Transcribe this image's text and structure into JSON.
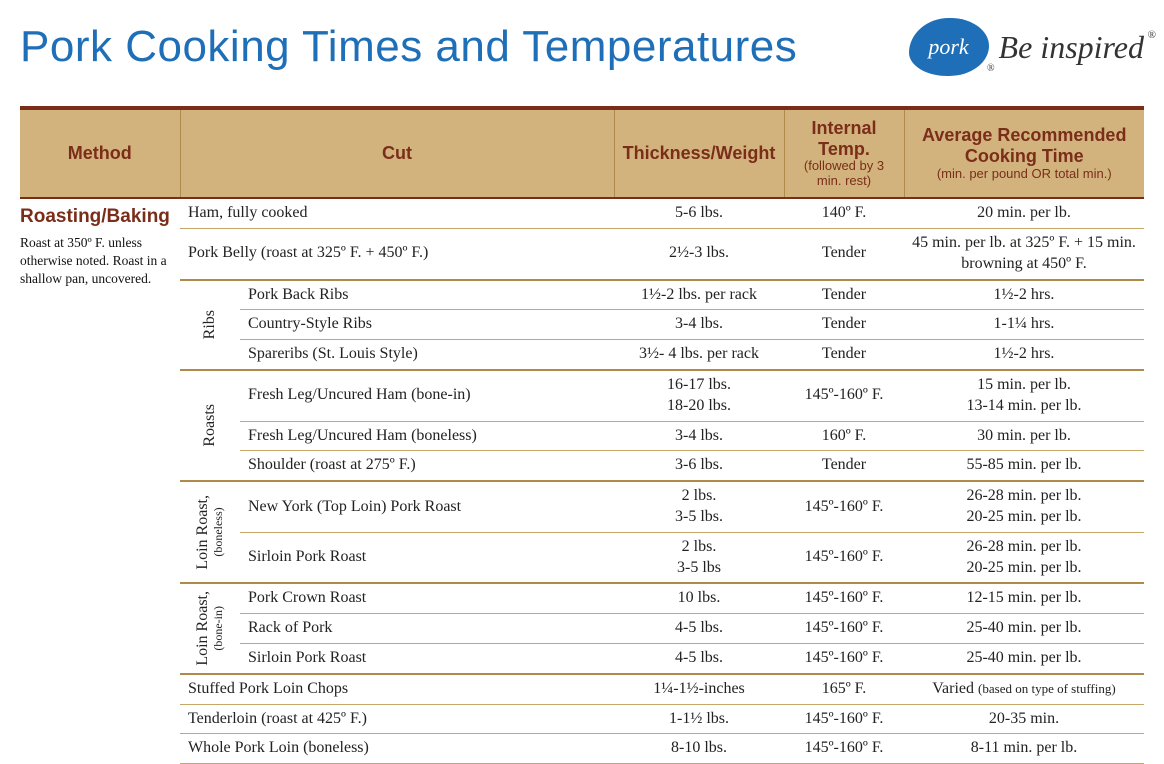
{
  "colors": {
    "title_blue": "#1e6fb7",
    "header_bg": "#d3b37d",
    "header_text": "#7a2e1a",
    "rule_dark": "#7a2e1a",
    "rule_light": "#c8a86a",
    "body_text": "#222222",
    "page_bg": "#ffffff"
  },
  "typography": {
    "title_font": "Arial Narrow",
    "title_size_pt": 33,
    "body_font": "Georgia",
    "body_size_pt": 12,
    "header_size_pt": 14
  },
  "title": "Pork Cooking Times and Temperatures",
  "logo": {
    "badge_text": "pork",
    "tagline": "Be inspired"
  },
  "columns": {
    "method": "Method",
    "cut": "Cut",
    "thickness": "Thickness/Weight",
    "temp": "Internal Temp.",
    "temp_sub": "(followed by 3 min. rest)",
    "time": "Average Recommended Cooking Time",
    "time_sub": "(min. per pound OR total min.)"
  },
  "method": {
    "name": "Roasting/Baking",
    "note": "Roast at 350º F. unless otherwise noted. Roast in a shallow pan, uncovered."
  },
  "groups": {
    "ribs": "Ribs",
    "roasts": "Roasts",
    "loin_boneless": "Loin Roast,",
    "loin_boneless_sub": "(boneless)",
    "loin_bonein": "Loin Roast,",
    "loin_bonein_sub": "(bone-in)"
  },
  "rows": {
    "r1": {
      "cut": "Ham, fully cooked",
      "w": "5-6 lbs.",
      "t": "140º F.",
      "time": "20 min. per lb."
    },
    "r2": {
      "cut": "Pork Belly (roast at 325º F. + 450º F.)",
      "w": "2½-3 lbs.",
      "t": "Tender",
      "time": "45 min. per lb. at 325º F. + 15 min. browning at 450º F."
    },
    "r3": {
      "cut": "Pork Back Ribs",
      "w": "1½-2 lbs. per rack",
      "t": "Tender",
      "time": "1½-2 hrs."
    },
    "r4": {
      "cut": "Country-Style Ribs",
      "w": "3-4 lbs.",
      "t": "Tender",
      "time": "1-1¼ hrs."
    },
    "r5": {
      "cut": "Spareribs (St. Louis Style)",
      "w": "3½- 4 lbs. per rack",
      "t": "Tender",
      "time": "1½-2 hrs."
    },
    "r6": {
      "cut": "Fresh Leg/Uncured Ham (bone-in)",
      "w": "16-17 lbs.\n18-20 lbs.",
      "t": "145º-160º F.",
      "time": "15 min. per lb.\n13-14 min. per lb."
    },
    "r7": {
      "cut": "Fresh Leg/Uncured Ham (boneless)",
      "w": "3-4 lbs.",
      "t": "160º F.",
      "time": "30 min. per lb."
    },
    "r8": {
      "cut": "Shoulder (roast at 275º F.)",
      "w": "3-6 lbs.",
      "t": "Tender",
      "time": "55-85 min. per lb."
    },
    "r9": {
      "cut": "New York (Top Loin) Pork Roast",
      "w": "2 lbs.\n3-5 lbs.",
      "t": "145º-160º F.",
      "time": "26-28 min. per lb.\n20-25 min. per lb."
    },
    "r10": {
      "cut": "Sirloin Pork Roast",
      "w": "2 lbs.\n3-5 lbs",
      "t": "145º-160º F.",
      "time": "26-28 min. per lb.\n20-25 min. per lb."
    },
    "r11": {
      "cut": "Pork Crown Roast",
      "w": "10 lbs.",
      "t": "145º-160º F.",
      "time": "12-15 min. per lb."
    },
    "r12": {
      "cut": "Rack of Pork",
      "w": "4-5 lbs.",
      "t": "145º-160º F.",
      "time": "25-40 min. per lb."
    },
    "r13": {
      "cut": "Sirloin Pork Roast",
      "w": "4-5 lbs.",
      "t": "145º-160º F.",
      "time": "25-40 min. per lb."
    },
    "r14": {
      "cut": "Stuffed Pork Loin Chops",
      "w": "1¼-1½-inches",
      "t": "165º F.",
      "time_prefix": "Varied ",
      "time_small": "(based on type of stuffing)"
    },
    "r15": {
      "cut": "Tenderloin (roast at 425º F.)",
      "w": "1-1½ lbs.",
      "t": "145º-160º F.",
      "time": "20-35 min."
    },
    "r16": {
      "cut": "Whole Pork Loin (boneless)",
      "w": "8-10 lbs.",
      "t": "145º-160º F.",
      "time": "8-11 min. per lb."
    }
  }
}
